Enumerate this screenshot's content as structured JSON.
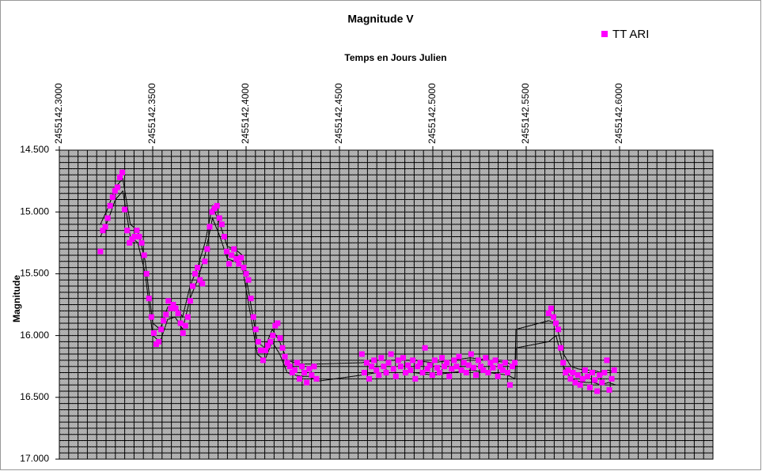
{
  "chart_data": {
    "type": "scatter",
    "title": "Magnitude V",
    "x_label": "Temps en Jours Julien",
    "y_label": "Magnitude",
    "xlim": [
      2455142.3,
      2455142.65
    ],
    "ylim": [
      14.5,
      17.0
    ],
    "y_reversed": true,
    "x_axis_position": "top",
    "grid": true,
    "minor_grid": {
      "x": 0.005,
      "y": 0.05
    },
    "legend": "top-right",
    "xticks": [
      {
        "value": 2455142.3,
        "label": "2455142.3000"
      },
      {
        "value": 2455142.35,
        "label": "2455142.3500"
      },
      {
        "value": 2455142.4,
        "label": "2455142.4000"
      },
      {
        "value": 2455142.45,
        "label": "2455142.4500"
      },
      {
        "value": 2455142.5,
        "label": "2455142.5000"
      },
      {
        "value": 2455142.55,
        "label": "2455142.5500"
      },
      {
        "value": 2455142.6,
        "label": "2455142.6000"
      }
    ],
    "yticks": [
      {
        "value": 14.5,
        "label": "14.500"
      },
      {
        "value": 15.0,
        "label": "15.000"
      },
      {
        "value": 15.5,
        "label": "15.500"
      },
      {
        "value": 16.0,
        "label": "16.000"
      },
      {
        "value": 16.5,
        "label": "16.500"
      },
      {
        "value": 17.0,
        "label": "17.000"
      }
    ],
    "series": [
      {
        "name": "TT ARI",
        "color": "#ff00ff",
        "marker": "square",
        "x": [
          2455142.322,
          2455142.3233,
          2455142.3246,
          2455142.3259,
          2455142.3272,
          2455142.3285,
          2455142.3298,
          2455142.3311,
          2455142.3324,
          2455142.3337,
          2455142.335,
          2455142.3363,
          2455142.3376,
          2455142.3389,
          2455142.3402,
          2455142.3415,
          2455142.3428,
          2455142.3441,
          2455142.3454,
          2455142.3467,
          2455142.348,
          2455142.3493,
          2455142.3506,
          2455142.3519,
          2455142.3532,
          2455142.3545,
          2455142.3558,
          2455142.3571,
          2455142.3584,
          2455142.3597,
          2455142.361,
          2455142.3623,
          2455142.3636,
          2455142.3649,
          2455142.3662,
          2455142.3675,
          2455142.3688,
          2455142.3701,
          2455142.3714,
          2455142.3727,
          2455142.374,
          2455142.3753,
          2455142.3766,
          2455142.3779,
          2455142.3792,
          2455142.3805,
          2455142.3818,
          2455142.3831,
          2455142.3844,
          2455142.3857,
          2455142.387,
          2455142.3883,
          2455142.3896,
          2455142.3909,
          2455142.3922,
          2455142.3935,
          2455142.3948,
          2455142.3961,
          2455142.3974,
          2455142.3987,
          2455142.4,
          2455142.4013,
          2455142.4026,
          2455142.4039,
          2455142.4052,
          2455142.4065,
          2455142.4078,
          2455142.4091,
          2455142.4104,
          2455142.4117,
          2455142.413,
          2455142.4143,
          2455142.4156,
          2455142.4169,
          2455142.4182,
          2455142.4195,
          2455142.4208,
          2455142.4221,
          2455142.4234,
          2455142.4247,
          2455142.426,
          2455142.4273,
          2455142.4286,
          2455142.4299,
          2455142.4312,
          2455142.4325,
          2455142.4338,
          2455142.4351,
          2455142.4364,
          2455142.4377,
          2455142.462,
          2455142.4633,
          2455142.4646,
          2455142.4659,
          2455142.4672,
          2455142.4685,
          2455142.4698,
          2455142.4711,
          2455142.4724,
          2455142.4737,
          2455142.475,
          2455142.4763,
          2455142.4776,
          2455142.4789,
          2455142.4802,
          2455142.4815,
          2455142.4828,
          2455142.4841,
          2455142.4854,
          2455142.4867,
          2455142.488,
          2455142.4893,
          2455142.4906,
          2455142.4919,
          2455142.4932,
          2455142.4945,
          2455142.4958,
          2455142.4971,
          2455142.4984,
          2455142.4997,
          2455142.501,
          2455142.5023,
          2455142.5036,
          2455142.5049,
          2455142.5062,
          2455142.5075,
          2455142.5088,
          2455142.5101,
          2455142.5114,
          2455142.5127,
          2455142.514,
          2455142.5153,
          2455142.5166,
          2455142.5179,
          2455142.5192,
          2455142.5205,
          2455142.5218,
          2455142.5231,
          2455142.5244,
          2455142.5257,
          2455142.527,
          2455142.5283,
          2455142.5296,
          2455142.5309,
          2455142.5322,
          2455142.5335,
          2455142.5348,
          2455142.5361,
          2455142.5374,
          2455142.5387,
          2455142.54,
          2455142.5413,
          2455142.5426,
          2455142.5439,
          2455142.562,
          2455142.5633,
          2455142.5646,
          2455142.5659,
          2455142.5672,
          2455142.5685,
          2455142.5698,
          2455142.5711,
          2455142.5724,
          2455142.5737,
          2455142.575,
          2455142.5763,
          2455142.5776,
          2455142.5789,
          2455142.5802,
          2455142.5815,
          2455142.5828,
          2455142.5841,
          2455142.5854,
          2455142.5867,
          2455142.588,
          2455142.5893,
          2455142.5906,
          2455142.5919,
          2455142.5932,
          2455142.5945,
          2455142.5958,
          2455142.5971
        ],
        "values": [
          15.32,
          15.15,
          15.12,
          15.05,
          14.95,
          14.88,
          14.83,
          14.8,
          14.72,
          14.68,
          14.98,
          15.15,
          15.25,
          15.22,
          15.2,
          15.15,
          15.2,
          15.25,
          15.35,
          15.5,
          15.7,
          15.85,
          15.98,
          16.07,
          16.05,
          15.95,
          15.88,
          15.83,
          15.72,
          15.78,
          15.75,
          15.78,
          15.82,
          15.9,
          15.98,
          15.92,
          15.85,
          15.72,
          15.6,
          15.5,
          15.45,
          15.55,
          15.58,
          15.4,
          15.3,
          15.12,
          15.0,
          14.97,
          14.95,
          15.05,
          15.1,
          15.2,
          15.32,
          15.42,
          15.35,
          15.3,
          15.38,
          15.42,
          15.37,
          15.45,
          15.5,
          15.55,
          15.7,
          15.85,
          15.95,
          16.05,
          16.12,
          16.2,
          16.12,
          16.08,
          16.05,
          16.0,
          15.92,
          15.9,
          16.02,
          16.1,
          16.17,
          16.22,
          16.25,
          16.3,
          16.28,
          16.22,
          16.35,
          16.25,
          16.3,
          16.38,
          16.27,
          16.32,
          16.25,
          16.35,
          16.15,
          16.3,
          16.22,
          16.35,
          16.25,
          16.2,
          16.28,
          16.32,
          16.18,
          16.25,
          16.3,
          16.22,
          16.15,
          16.27,
          16.33,
          16.2,
          16.25,
          16.18,
          16.3,
          16.24,
          16.28,
          16.2,
          16.35,
          16.25,
          16.22,
          16.3,
          16.1,
          16.27,
          16.24,
          16.32,
          16.2,
          16.26,
          16.3,
          16.18,
          16.25,
          16.22,
          16.33,
          16.27,
          16.2,
          16.25,
          16.17,
          16.28,
          16.22,
          16.3,
          16.24,
          16.15,
          16.26,
          16.32,
          16.2,
          16.25,
          16.28,
          16.18,
          16.3,
          16.22,
          16.26,
          16.2,
          16.33,
          16.25,
          16.28,
          16.22,
          16.3,
          16.4,
          16.25,
          16.22,
          15.82,
          15.78,
          15.85,
          15.9,
          15.95,
          16.1,
          16.22,
          16.3,
          16.28,
          16.35,
          16.3,
          16.38,
          16.32,
          16.4,
          16.35,
          16.28,
          16.33,
          16.42,
          16.3,
          16.36,
          16.45,
          16.32,
          16.38,
          16.3,
          16.2,
          16.44,
          16.35,
          16.28
        ]
      },
      {
        "color": "#000000",
        "marker": "line",
        "x": [
          2455142.322,
          2455142.326,
          2455142.33,
          2455142.334,
          2455142.338,
          2455142.342,
          2455142.346,
          2455142.35,
          2455142.354,
          2455142.358,
          2455142.362,
          2455142.366,
          2455142.37,
          2455142.374,
          2455142.378,
          2455142.382,
          2455142.386,
          2455142.39,
          2455142.394,
          2455142.398,
          2455142.402,
          2455142.406,
          2455142.41,
          2455142.414,
          2455142.418,
          2455142.422,
          2455142.426,
          2455142.43,
          2455142.434,
          2455142.438,
          2455142.462,
          2455142.47,
          2455142.48,
          2455142.49,
          2455142.5,
          2455142.51,
          2455142.52,
          2455142.53,
          2455142.54,
          2455142.544,
          2455142.5445,
          2455142.562,
          2455142.566,
          2455142.57,
          2455142.574,
          2455142.578,
          2455142.582,
          2455142.586,
          2455142.59,
          2455142.594,
          2455142.598
        ],
        "values": [
          15.1,
          14.97,
          14.8,
          14.73,
          15.1,
          15.15,
          15.4,
          15.9,
          15.95,
          15.77,
          15.75,
          15.85,
          15.6,
          15.45,
          15.25,
          14.95,
          15.1,
          15.28,
          15.3,
          15.35,
          15.7,
          16.05,
          16.1,
          15.95,
          16.05,
          16.2,
          16.22,
          16.23,
          16.23,
          16.23,
          16.22,
          16.2,
          16.2,
          16.2,
          16.22,
          16.2,
          16.18,
          16.2,
          16.22,
          16.25,
          15.95,
          15.88,
          15.9,
          16.15,
          16.25,
          16.27,
          16.28,
          16.28,
          16.3,
          16.28,
          16.3
        ]
      },
      {
        "color": "#000000",
        "marker": "line",
        "x": [
          2455142.322,
          2455142.326,
          2455142.33,
          2455142.334,
          2455142.338,
          2455142.342,
          2455142.346,
          2455142.35,
          2455142.354,
          2455142.358,
          2455142.362,
          2455142.366,
          2455142.37,
          2455142.374,
          2455142.378,
          2455142.382,
          2455142.386,
          2455142.39,
          2455142.394,
          2455142.398,
          2455142.402,
          2455142.406,
          2455142.41,
          2455142.414,
          2455142.418,
          2455142.422,
          2455142.426,
          2455142.43,
          2455142.434,
          2455142.438,
          2455142.462,
          2455142.47,
          2455142.48,
          2455142.49,
          2455142.5,
          2455142.51,
          2455142.52,
          2455142.53,
          2455142.54,
          2455142.544,
          2455142.5445,
          2455142.562,
          2455142.566,
          2455142.57,
          2455142.574,
          2455142.578,
          2455142.582,
          2455142.586,
          2455142.59,
          2455142.594,
          2455142.598
        ],
        "values": [
          15.2,
          15.07,
          14.9,
          14.83,
          15.2,
          15.25,
          15.5,
          16.0,
          16.05,
          15.87,
          15.85,
          15.95,
          15.7,
          15.55,
          15.35,
          15.05,
          15.2,
          15.38,
          15.4,
          15.45,
          15.8,
          16.15,
          16.2,
          16.05,
          16.15,
          16.3,
          16.32,
          16.33,
          16.33,
          16.37,
          16.32,
          16.3,
          16.3,
          16.3,
          16.32,
          16.3,
          16.28,
          16.3,
          16.32,
          16.35,
          16.1,
          16.05,
          16.0,
          16.25,
          16.35,
          16.37,
          16.38,
          16.38,
          16.4,
          16.38,
          16.4
        ]
      }
    ]
  }
}
